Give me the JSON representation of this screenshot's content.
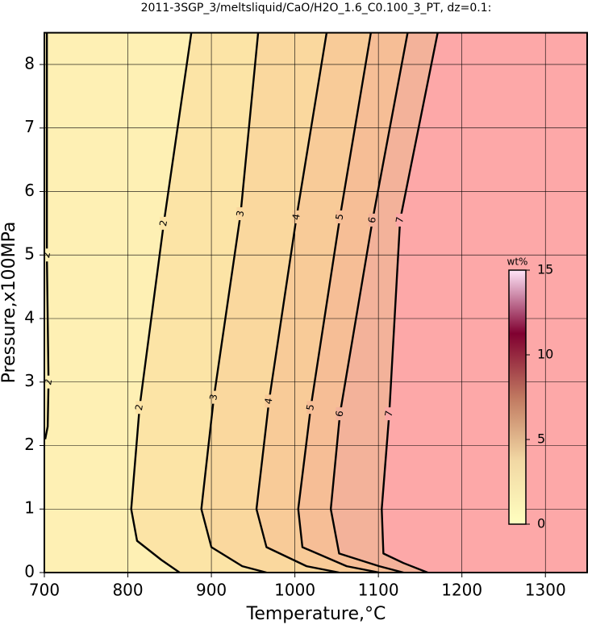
{
  "chart_data": {
    "type": "contour",
    "title": "2011-3SGP_3/meltsliquid/CaO/H2O_1.6_C0.100_3_PT, dz=0.1:",
    "x_label": "Temperature,°C",
    "y_label": "Pressure,x100MPa",
    "xlim": [
      700,
      1350
    ],
    "ylim": [
      0,
      8.5
    ],
    "xticks": [
      700,
      800,
      900,
      1000,
      1100,
      1200,
      1300
    ],
    "yticks": [
      0,
      1,
      2,
      3,
      4,
      5,
      6,
      7,
      8
    ],
    "grid": true,
    "background_color": "#fef0b4",
    "series": [
      {
        "name": "2",
        "x": [
          703,
          703,
          705,
          704,
          701
        ],
        "y": [
          8.5,
          5,
          3,
          2.3,
          2.1
        ]
      },
      {
        "name": "2",
        "color": "#fce4a6",
        "x": [
          876,
          843,
          814,
          804,
          811,
          840,
          862
        ],
        "y": [
          8.5,
          5.5,
          2.6,
          1,
          0.5,
          0.2,
          0
        ]
      },
      {
        "name": "3",
        "color": "#fad89e",
        "x": [
          956,
          935,
          903,
          888,
          900,
          937,
          966
        ],
        "y": [
          8.5,
          5.65,
          2.76,
          1,
          0.4,
          0.1,
          0
        ]
      },
      {
        "name": "4",
        "color": "#f8cb98",
        "x": [
          1038,
          1002,
          969,
          954,
          966,
          1014,
          1053
        ],
        "y": [
          8.5,
          5.6,
          2.7,
          1,
          0.4,
          0.1,
          0
        ]
      },
      {
        "name": "5",
        "color": "#f6be96",
        "x": [
          1091,
          1054,
          1019,
          1004,
          1009,
          1062,
          1101
        ],
        "y": [
          8.5,
          5.6,
          2.6,
          1,
          0.4,
          0.1,
          0
        ]
      },
      {
        "name": "6",
        "color": "#f3b29a",
        "x": [
          1135,
          1093,
          1054,
          1043,
          1053,
          1101,
          1130
        ],
        "y": [
          8.5,
          5.55,
          2.5,
          1,
          0.3,
          0.1,
          0
        ]
      },
      {
        "name": "7",
        "color": "#fda8a8",
        "x": [
          1171,
          1126,
          1113,
          1104,
          1106,
          1130,
          1159
        ],
        "y": [
          8.5,
          5.55,
          2.5,
          1,
          0.3,
          0.15,
          0
        ]
      }
    ],
    "colorbar": {
      "label": "wt%",
      "lim": [
        0,
        15
      ],
      "ticks": [
        0,
        5,
        10,
        15
      ],
      "colors": [
        "#ffffc0",
        "#f2d8a4",
        "#c07860",
        "#800030",
        "#ffe4f8"
      ]
    }
  }
}
